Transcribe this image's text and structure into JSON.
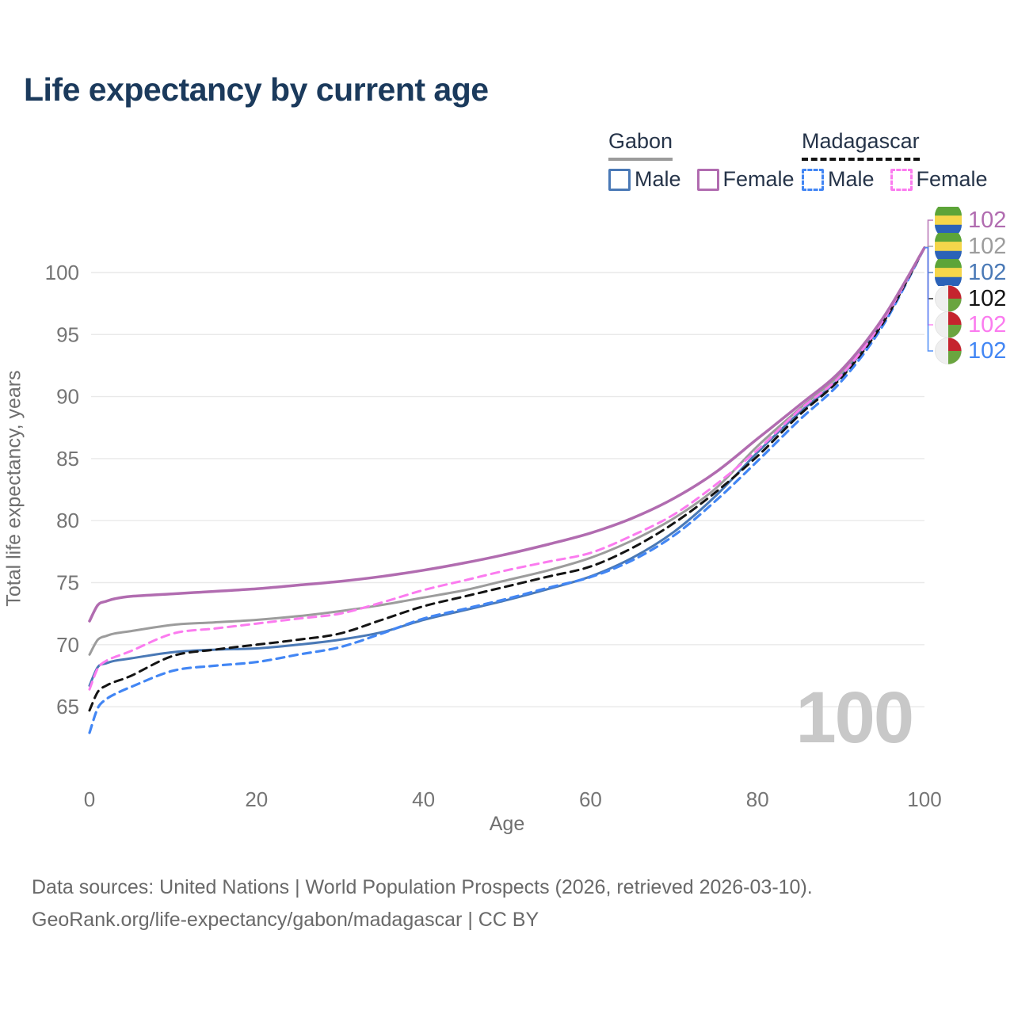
{
  "title": "Life expectancy by current age",
  "legend": {
    "groups": [
      {
        "country": "Gabon",
        "line_style": "solid",
        "underline_color": "#9b9b9b",
        "items": [
          {
            "label": "Male",
            "color": "#4a79b6",
            "dashed": false
          },
          {
            "label": "Female",
            "color": "#b16cb0",
            "dashed": false
          }
        ]
      },
      {
        "country": "Madagascar",
        "line_style": "dashed",
        "underline_color": "#141414",
        "items": [
          {
            "label": "Male",
            "color": "#4286f4",
            "dashed": true
          },
          {
            "label": "Female",
            "color": "#fb7bef",
            "dashed": true
          }
        ]
      }
    ]
  },
  "watermark": "100",
  "footer": {
    "line1": "Data sources: United Nations | World Population Prospects (2026, retrieved 2026-03-10).",
    "line2": "GeoRank.org/life-expectancy/gabon/madagascar | CC BY"
  },
  "chart_data": {
    "type": "line",
    "title": "Life expectancy by current age",
    "xlabel": "Age",
    "ylabel": "Total life expectancy, years",
    "x_ticks": [
      0,
      20,
      40,
      60,
      80,
      100
    ],
    "y_ticks": [
      65,
      70,
      75,
      80,
      85,
      90,
      95,
      100
    ],
    "xlim": [
      0,
      100
    ],
    "ylim": [
      62,
      103.5
    ],
    "grid": "horizontal",
    "legend_position": "top-right",
    "x": [
      0,
      1,
      2,
      3,
      5,
      10,
      15,
      20,
      25,
      30,
      35,
      40,
      45,
      50,
      55,
      60,
      65,
      70,
      75,
      80,
      85,
      90,
      95,
      100
    ],
    "series": [
      {
        "id": "gabon-total",
        "name": "Gabon",
        "country": "Gabon",
        "sex": "Both",
        "color": "#9c9c9c",
        "dashed": false,
        "width": 3,
        "values": [
          69.2,
          70.4,
          70.7,
          70.9,
          71.1,
          71.6,
          71.8,
          72.0,
          72.3,
          72.7,
          73.2,
          73.8,
          74.4,
          75.2,
          76.0,
          77.0,
          78.4,
          80.2,
          82.6,
          86.0,
          89.0,
          91.9,
          96.2,
          102
        ]
      },
      {
        "id": "gabon-male",
        "name": "Gabon Male",
        "country": "Gabon",
        "sex": "Male",
        "color": "#4a79b6",
        "dashed": false,
        "width": 3,
        "values": [
          66.7,
          68.2,
          68.5,
          68.7,
          68.9,
          69.4,
          69.6,
          69.7,
          70.0,
          70.4,
          71.0,
          72.0,
          72.8,
          73.6,
          74.5,
          75.5,
          77.0,
          79.1,
          82.0,
          85.5,
          88.7,
          91.6,
          96.0,
          102
        ]
      },
      {
        "id": "madagascar-male",
        "name": "Madagascar Male",
        "country": "Madagascar",
        "sex": "Male",
        "color": "#4286f4",
        "dashed": true,
        "width": 3.2,
        "values": [
          62.9,
          64.9,
          65.6,
          66.0,
          66.6,
          67.9,
          68.3,
          68.6,
          69.2,
          69.8,
          70.9,
          72.1,
          72.9,
          73.7,
          74.6,
          75.45,
          76.8,
          78.8,
          81.6,
          84.8,
          88.1,
          91.2,
          95.7,
          102
        ]
      },
      {
        "id": "madagascar-total",
        "name": "Madagascar",
        "country": "Madagascar",
        "sex": "Both",
        "color": "#141414",
        "dashed": true,
        "width": 3,
        "values": [
          64.7,
          66.2,
          66.7,
          67.0,
          67.5,
          69.1,
          69.6,
          70.0,
          70.4,
          70.9,
          72.0,
          73.1,
          73.9,
          74.7,
          75.5,
          76.3,
          77.8,
          79.8,
          82.3,
          85.2,
          88.5,
          91.5,
          95.9,
          102
        ]
      },
      {
        "id": "madagascar-female",
        "name": "Madagascar Female",
        "country": "Madagascar",
        "sex": "Female",
        "color": "#fb7bef",
        "dashed": true,
        "width": 3,
        "values": [
          66.4,
          68.1,
          68.7,
          69.0,
          69.5,
          70.9,
          71.3,
          71.7,
          72.1,
          72.5,
          73.4,
          74.4,
          75.2,
          76.0,
          76.7,
          77.4,
          78.8,
          80.5,
          82.9,
          85.7,
          88.9,
          91.7,
          96.1,
          102
        ]
      },
      {
        "id": "gabon-female",
        "name": "Gabon Female",
        "country": "Gabon",
        "sex": "Female",
        "color": "#b16cb0",
        "dashed": false,
        "width": 3.5,
        "values": [
          71.9,
          73.2,
          73.5,
          73.7,
          73.9,
          74.1,
          74.3,
          74.5,
          74.8,
          75.1,
          75.5,
          76.0,
          76.6,
          77.3,
          78.1,
          79.0,
          80.2,
          81.8,
          83.9,
          86.6,
          89.3,
          92.1,
          96.3,
          102
        ]
      }
    ],
    "end_labels": [
      {
        "series_id": "gabon-female",
        "flag": "gabon",
        "value": "102",
        "color": "#b16cb0"
      },
      {
        "series_id": "gabon-total",
        "flag": "gabon",
        "value": "102",
        "color": "#9c9c9c"
      },
      {
        "series_id": "gabon-male",
        "flag": "gabon",
        "value": "102",
        "color": "#4a79b6"
      },
      {
        "series_id": "madagascar-total",
        "flag": "madagascar",
        "value": "102",
        "color": "#141414"
      },
      {
        "series_id": "madagascar-female",
        "flag": "madagascar",
        "value": "102",
        "color": "#fb7bef"
      },
      {
        "series_id": "madagascar-male",
        "flag": "madagascar",
        "value": "102",
        "color": "#4286f4"
      }
    ]
  }
}
